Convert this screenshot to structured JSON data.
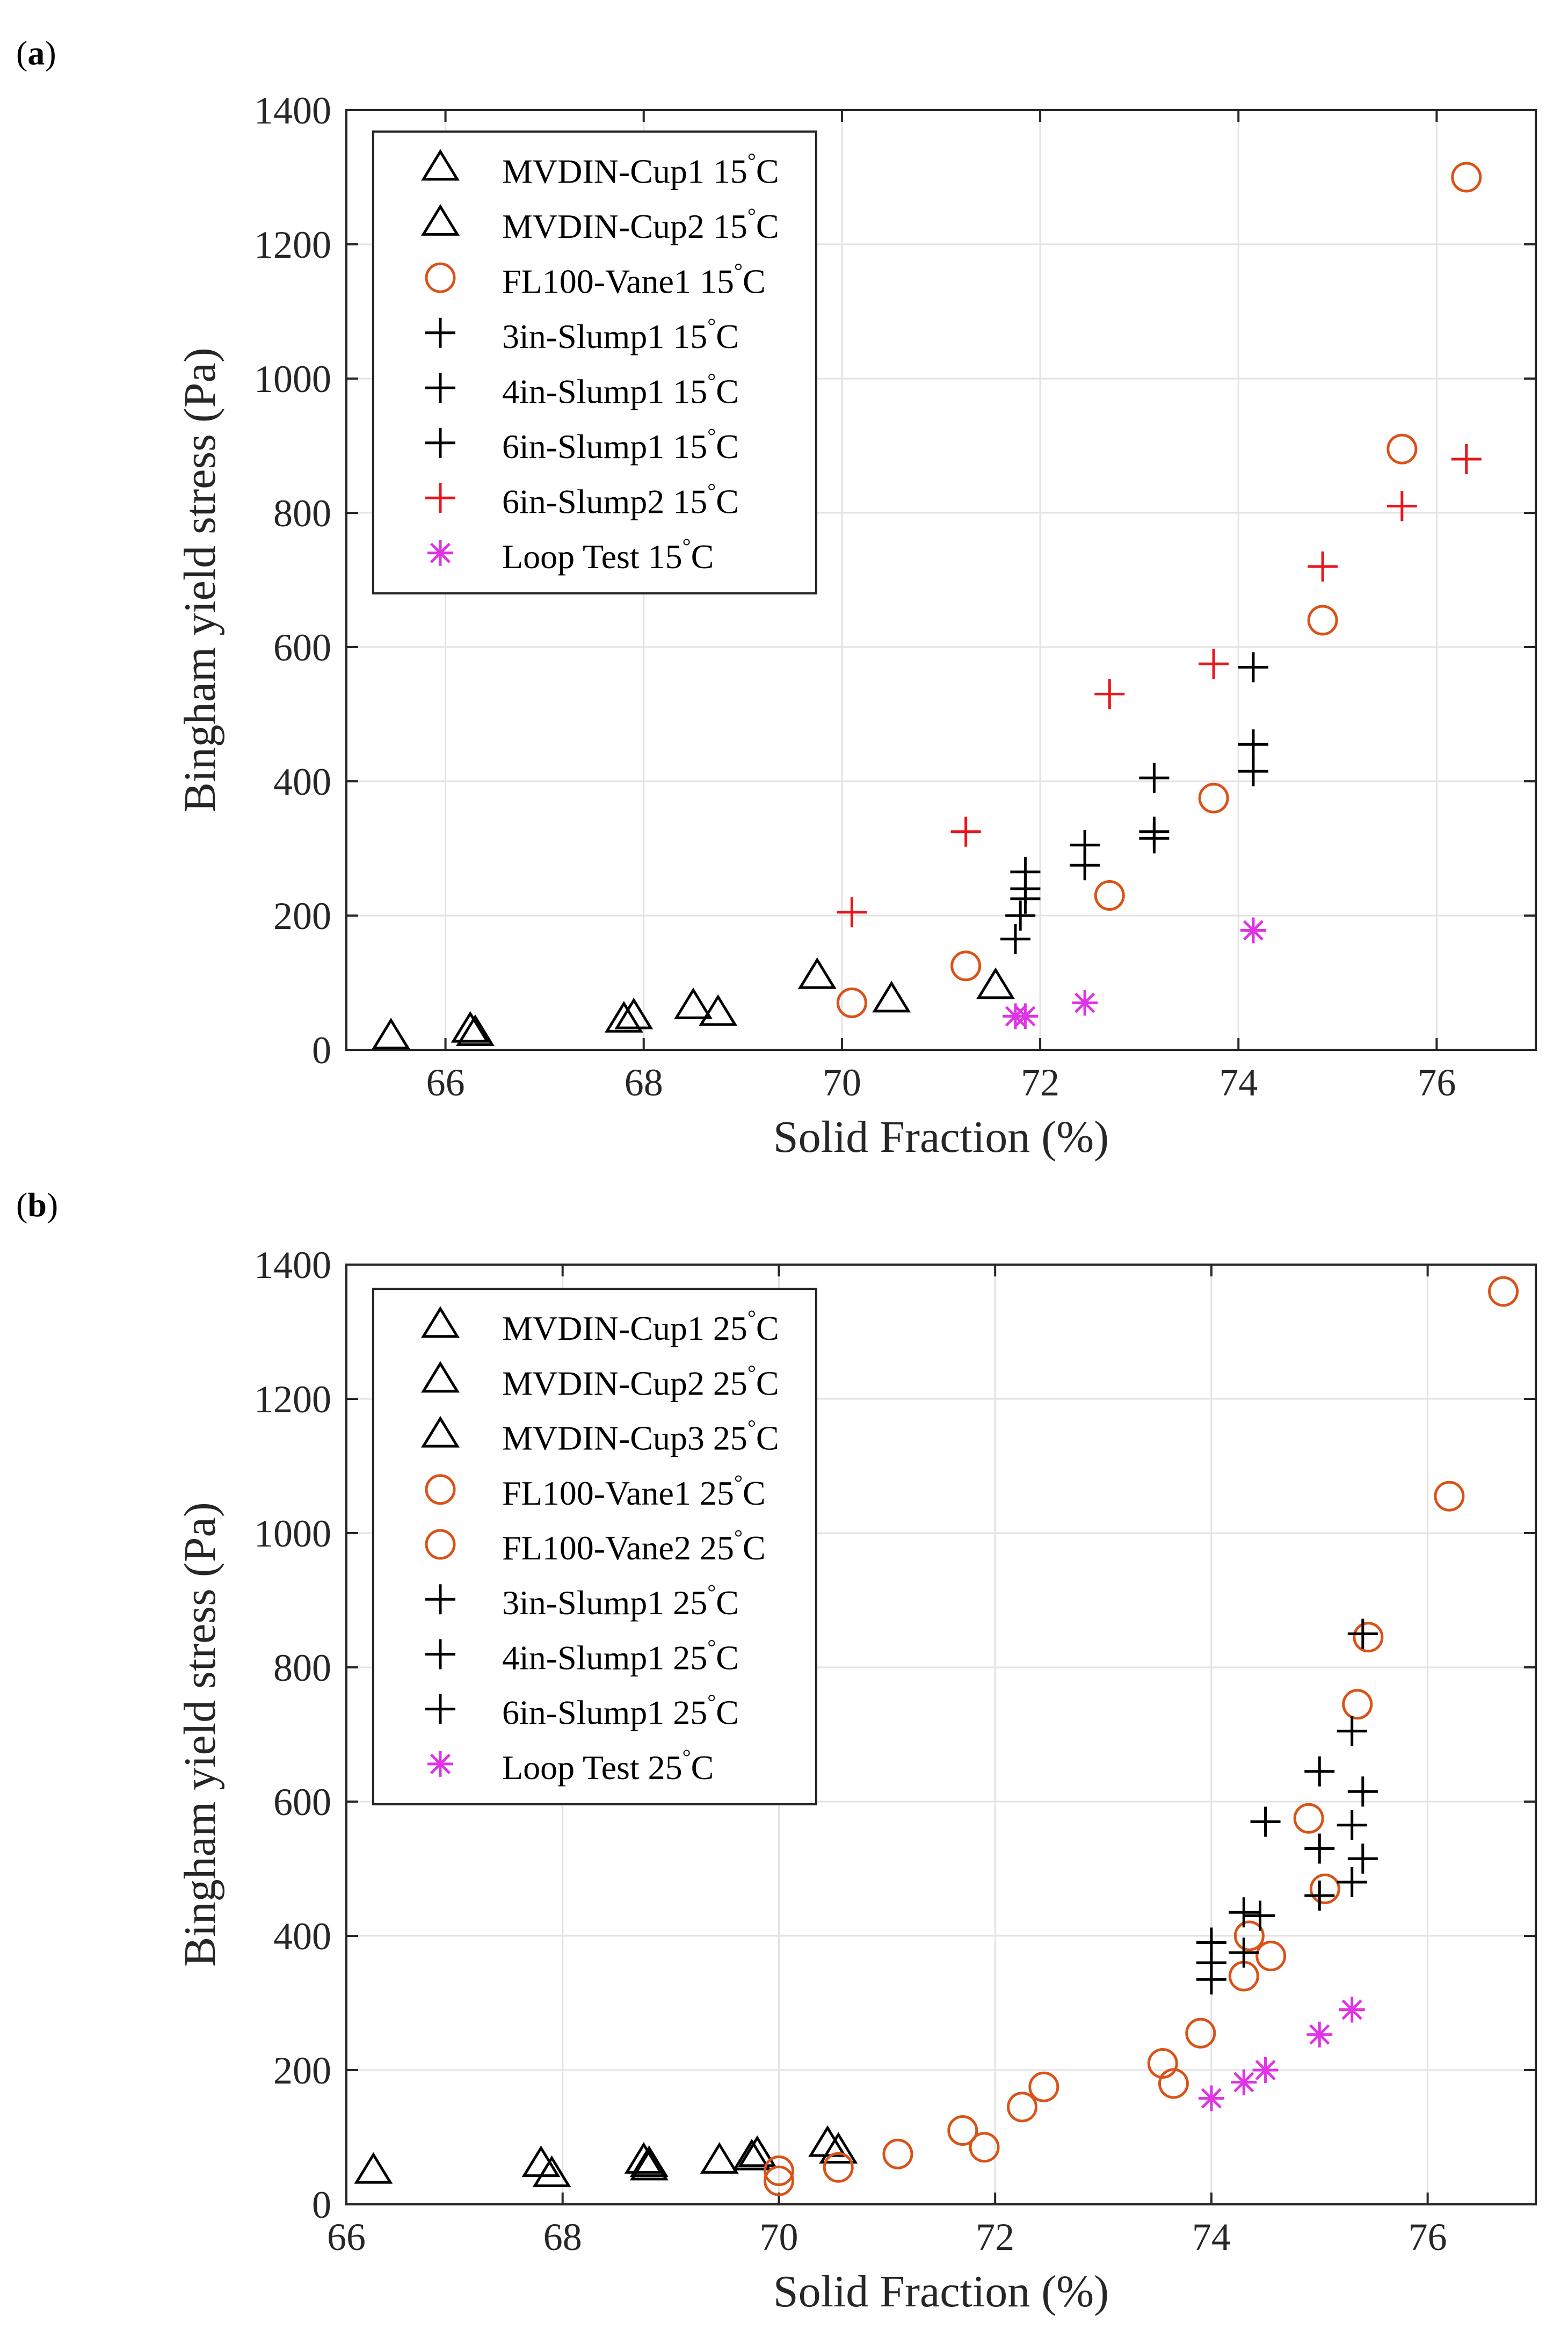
{
  "colors": {
    "black": "#000000",
    "orange": "#D95319",
    "red": "#E8151B",
    "magenta": "#E033E5"
  },
  "chart_data": [
    {
      "panel": "(a)",
      "panel_letter": "a",
      "type": "scatter",
      "xlabel": "Solid Fraction (%)",
      "ylabel": "Bingham yield stress (Pa)",
      "xlim": [
        65,
        77
      ],
      "ylim": [
        0,
        1400
      ],
      "xticks": [
        66,
        68,
        70,
        72,
        74,
        76
      ],
      "yticks": [
        0,
        200,
        400,
        600,
        800,
        1000,
        1200,
        1400
      ],
      "grid": true,
      "legend_position": "top-left",
      "series": [
        {
          "name": "MVDIN-Cup1 15",
          "unit": "C",
          "marker": "triangle",
          "color": "black",
          "x": [
            65.45,
            66.25,
            66.3,
            67.8,
            67.9
          ],
          "y": [
            20,
            30,
            25,
            45,
            50
          ]
        },
        {
          "name": "MVDIN-Cup2 15",
          "unit": "C",
          "marker": "triangle",
          "color": "black",
          "x": [
            68.5,
            68.75,
            69.75,
            70.5,
            71.55
          ],
          "y": [
            65,
            55,
            110,
            75,
            95
          ]
        },
        {
          "name": "FL100-Vane1 15",
          "unit": "C",
          "marker": "circle",
          "color": "orange",
          "x": [
            70.1,
            71.25,
            72.7,
            73.75,
            74.85,
            75.65,
            76.3
          ],
          "y": [
            70,
            125,
            230,
            375,
            640,
            895,
            1300
          ]
        },
        {
          "name": "3in-Slump1 15",
          "unit": "C",
          "marker": "plus",
          "color": "black",
          "x": [
            71.75,
            71.8,
            71.85
          ],
          "y": [
            165,
            200,
            240
          ]
        },
        {
          "name": "4in-Slump1 15",
          "unit": "C",
          "marker": "plus",
          "color": "black",
          "x": [
            71.85,
            72.45,
            72.45
          ],
          "y": [
            225,
            275,
            305
          ]
        },
        {
          "name": "6in-Slump1 15",
          "unit": "C",
          "marker": "plus",
          "color": "black",
          "x": [
            73.15,
            73.15,
            73.15,
            74.15,
            74.15,
            74.15,
            71.85
          ],
          "y": [
            315,
            325,
            405,
            415,
            455,
            570,
            265
          ]
        },
        {
          "name": "6in-Slump2 15",
          "unit": "C",
          "marker": "plus",
          "color": "red",
          "x": [
            70.1,
            71.25,
            72.7,
            73.75,
            74.85,
            75.65,
            76.3
          ],
          "y": [
            205,
            325,
            530,
            575,
            720,
            810,
            880
          ]
        },
        {
          "name": "Loop Test 15",
          "unit": "C",
          "marker": "asterisk",
          "color": "magenta",
          "x": [
            71.75,
            71.85,
            72.45,
            74.15
          ],
          "y": [
            50,
            50,
            70,
            178
          ]
        }
      ]
    },
    {
      "panel": "(b)",
      "panel_letter": "b",
      "type": "scatter",
      "xlabel": "Solid Fraction (%)",
      "ylabel": "Bingham yield stress (Pa)",
      "xlim": [
        66,
        77
      ],
      "ylim": [
        0,
        1400
      ],
      "xticks": [
        66,
        68,
        70,
        72,
        74,
        76
      ],
      "yticks": [
        0,
        200,
        400,
        600,
        800,
        1000,
        1200,
        1400
      ],
      "grid": true,
      "legend_position": "top-left",
      "series": [
        {
          "name": "MVDIN-Cup1 25",
          "unit": "C",
          "marker": "triangle",
          "color": "black",
          "x": [
            66.25,
            67.8,
            67.9,
            68.75,
            68.8
          ],
          "y": [
            50,
            60,
            45,
            65,
            55
          ]
        },
        {
          "name": "MVDIN-Cup2 25",
          "unit": "C",
          "marker": "triangle",
          "color": "black",
          "x": [
            69.45,
            69.75,
            69.8,
            70.45
          ],
          "y": [
            65,
            70,
            75,
            90
          ]
        },
        {
          "name": "MVDIN-Cup3 25",
          "unit": "C",
          "marker": "triangle",
          "color": "black",
          "x": [
            68.8,
            70.55
          ],
          "y": [
            60,
            80
          ]
        },
        {
          "name": "FL100-Vane1 25",
          "unit": "C",
          "marker": "circle",
          "color": "orange",
          "x": [
            70.0,
            70.55,
            71.1,
            71.7,
            71.9,
            72.25,
            72.45,
            73.55,
            73.65,
            73.9
          ],
          "y": [
            50,
            55,
            75,
            110,
            85,
            145,
            175,
            210,
            180,
            255
          ]
        },
        {
          "name": "FL100-Vane2 25",
          "unit": "C",
          "marker": "circle",
          "color": "orange",
          "x": [
            70.0,
            74.3,
            74.35,
            74.55,
            74.9,
            75.05,
            75.35,
            75.45,
            76.2,
            76.7
          ],
          "y": [
            35,
            340,
            400,
            370,
            575,
            470,
            745,
            845,
            1055,
            1360
          ]
        },
        {
          "name": "3in-Slump1 25",
          "unit": "C",
          "marker": "plus",
          "color": "black",
          "x": [
            74.0,
            74.0,
            74.0,
            74.3,
            74.3
          ],
          "y": [
            335,
            360,
            390,
            375,
            435
          ]
        },
        {
          "name": "4in-Slump1 25",
          "unit": "C",
          "marker": "plus",
          "color": "black",
          "x": [
            74.45,
            74.5,
            75.0,
            75.0,
            75.0
          ],
          "y": [
            430,
            570,
            460,
            530,
            645
          ]
        },
        {
          "name": "6in-Slump1 25",
          "unit": "C",
          "marker": "plus",
          "color": "black",
          "x": [
            75.3,
            75.3,
            75.3,
            75.4,
            75.4,
            75.4
          ],
          "y": [
            480,
            565,
            705,
            515,
            615,
            850
          ]
        },
        {
          "name": "Loop Test 25",
          "unit": "C",
          "marker": "asterisk",
          "color": "magenta",
          "x": [
            74.0,
            74.3,
            74.5,
            75.0,
            75.3
          ],
          "y": [
            158,
            182,
            200,
            253,
            290
          ]
        }
      ]
    }
  ]
}
